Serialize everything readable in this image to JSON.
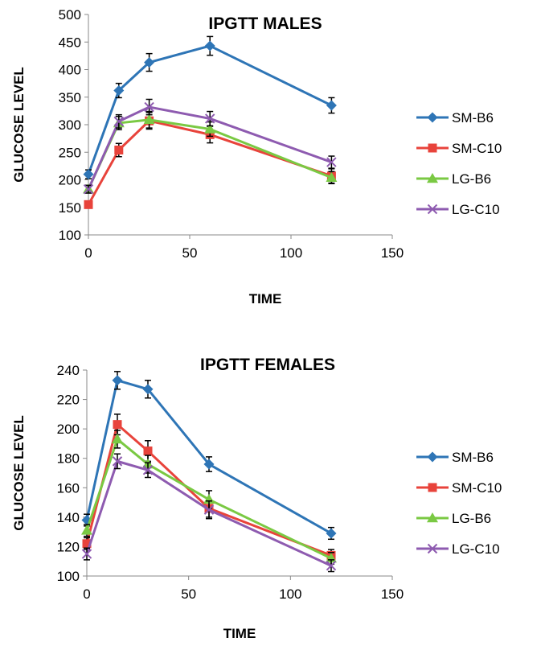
{
  "colors": {
    "SM-B6": "#2E75B6",
    "SM-C10": "#E8433B",
    "LG-B6": "#7AC943",
    "LG-C10": "#8E5BB0"
  },
  "chart_data": [
    {
      "type": "line",
      "title": "IPGTT MALES",
      "xlabel": "TIME",
      "ylabel": "GLUCOSE LEVEL",
      "xlim": [
        0,
        150
      ],
      "ylim": [
        100,
        500
      ],
      "xticks": [
        0,
        50,
        100,
        150
      ],
      "yticks": [
        100,
        150,
        200,
        250,
        300,
        350,
        400,
        450,
        500
      ],
      "grid": false,
      "legend_position": "right",
      "x": [
        0,
        15,
        30,
        60,
        120
      ],
      "series": [
        {
          "name": "SM-B6",
          "marker": "diamond",
          "values": [
            210,
            362,
            413,
            443,
            335
          ],
          "errors": [
            8,
            13,
            16,
            17,
            14
          ]
        },
        {
          "name": "SM-C10",
          "marker": "square",
          "values": [
            155,
            254,
            307,
            282,
            207
          ],
          "errors": [
            6,
            12,
            15,
            15,
            13
          ]
        },
        {
          "name": "LG-B6",
          "marker": "triangle",
          "values": [
            183,
            303,
            309,
            292,
            204
          ],
          "errors": [
            7,
            12,
            15,
            13,
            11
          ]
        },
        {
          "name": "LG-C10",
          "marker": "x",
          "values": [
            183,
            306,
            332,
            311,
            232
          ],
          "errors": [
            7,
            12,
            14,
            13,
            11
          ]
        }
      ]
    },
    {
      "type": "line",
      "title": "IPGTT FEMALES",
      "xlabel": "TIME",
      "ylabel": "GLUCOSE LEVEL",
      "xlim": [
        0,
        150
      ],
      "ylim": [
        100,
        240
      ],
      "xticks": [
        0,
        50,
        100,
        150
      ],
      "yticks": [
        100,
        120,
        140,
        160,
        180,
        200,
        220,
        240
      ],
      "grid": false,
      "legend_position": "right",
      "x": [
        0,
        15,
        30,
        60,
        120
      ],
      "series": [
        {
          "name": "SM-B6",
          "marker": "diamond",
          "values": [
            138,
            233,
            227,
            176,
            129
          ],
          "errors": [
            4,
            6,
            6,
            5,
            4
          ]
        },
        {
          "name": "SM-C10",
          "marker": "square",
          "values": [
            122,
            203,
            185,
            146,
            114
          ],
          "errors": [
            4,
            7,
            7,
            6,
            4
          ]
        },
        {
          "name": "LG-B6",
          "marker": "triangle",
          "values": [
            131,
            193,
            176,
            152,
            112
          ],
          "errors": [
            4,
            6,
            6,
            6,
            4
          ]
        },
        {
          "name": "LG-C10",
          "marker": "x",
          "values": [
            115,
            178,
            172,
            145,
            107
          ],
          "errors": [
            4,
            5,
            5,
            6,
            4
          ]
        }
      ]
    }
  ]
}
